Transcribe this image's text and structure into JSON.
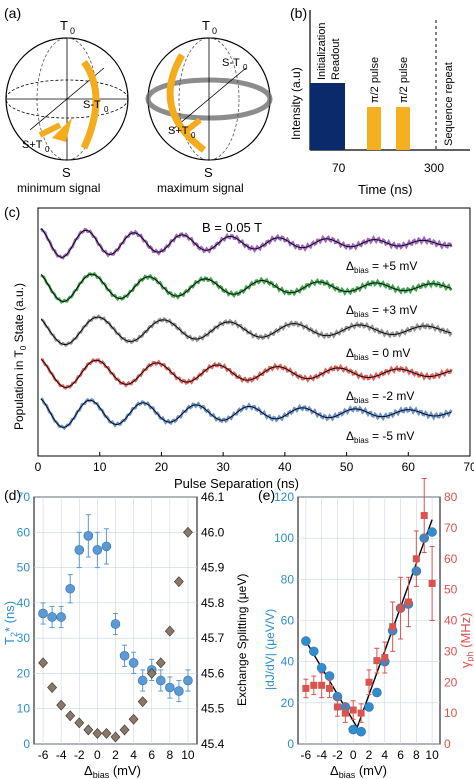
{
  "panel_a": {
    "label": "(a)",
    "sphere_top": "T",
    "sphere_top_sub": "0",
    "sphere_bottom": "S",
    "st0_main": "S-T",
    "st0_sub": "0",
    "spt0_main": "S+T",
    "spt0_sub": "0",
    "caption_left": "minimum signal",
    "caption_right": "maximum signal",
    "arrow_color": "#f4ac1c"
  },
  "chart_data": [
    {
      "id": "b",
      "type": "bar",
      "panel_label": "(b)",
      "ylabel": "Intensity (a.u)",
      "xlabel": "Time (ns)",
      "xticks": [
        "70",
        "300"
      ],
      "bars": [
        {
          "label": "Initialization Readout",
          "color": "#0b2a6b"
        },
        {
          "label": "π/2 pulse",
          "color": "#f5b021"
        },
        {
          "label": "π/2 pulse",
          "color": "#f5b021"
        }
      ],
      "repeat_label": "Sequence repeat"
    },
    {
      "id": "c",
      "type": "line",
      "panel_label": "(c)",
      "title": "B = 0.05 T",
      "xlabel": "Pulse Separation (ns)",
      "ylabel": "Population in T",
      "ylabel_sub": "0",
      "ylabel_tail": " State (a.u.)",
      "xlim": [
        0,
        70
      ],
      "xticks": [
        0,
        10,
        20,
        30,
        40,
        50,
        60,
        70
      ],
      "series": [
        {
          "name": "Δbias = +5 mV",
          "delta": "+5 mV",
          "color": "#9157b5",
          "period": 7.8,
          "decay": 35,
          "phase": 0.0
        },
        {
          "name": "Δbias = +3 mV",
          "delta": "+3 mV",
          "color": "#2f9a3e",
          "period": 9.2,
          "decay": 40,
          "phase": 0.3
        },
        {
          "name": "Δbias = 0 mV",
          "delta": "0 mV",
          "color": "#8a8a8a",
          "period": 10.6,
          "decay": 45,
          "phase": 0.5
        },
        {
          "name": "Δbias = -2 mV",
          "delta": "-2 mV",
          "color": "#d9524a",
          "period": 9.8,
          "decay": 42,
          "phase": 0.2
        },
        {
          "name": "Δbias = -5 mV",
          "delta": "-5 mV",
          "color": "#5a86c6",
          "period": 8.6,
          "decay": 38,
          "phase": 0.1
        }
      ],
      "delta_prefix": "Δ",
      "delta_sub": "bias",
      "delta_eq": " = "
    },
    {
      "id": "d",
      "type": "scatter",
      "panel_label": "(d)",
      "xlabel": "Δ",
      "xlabel_sub": "bias",
      "xlabel_tail": " (mV)",
      "xlim": [
        -7,
        11
      ],
      "xticks": [
        -6,
        -4,
        -2,
        0,
        2,
        4,
        6,
        8,
        10
      ],
      "left_axis": {
        "label": "T",
        "label_sub": "2",
        "label_tail": "* (ns)",
        "ylim": [
          0,
          70
        ],
        "yticks": [
          0,
          10,
          20,
          30,
          40,
          50,
          60,
          70
        ],
        "color": "#2e8fd0"
      },
      "right_axis": {
        "label": "Exchange Splitting (μeV)",
        "ylim": [
          45.4,
          46.1
        ],
        "yticks": [
          "45.4",
          "45.5",
          "45.6",
          "45.7",
          "45.8",
          "45.9",
          "46.0",
          "46.1"
        ],
        "color": "#000000"
      },
      "series": [
        {
          "name": "T2*",
          "axis": "left",
          "marker": "circle",
          "color": "#5b9bd5",
          "x": [
            -6,
            -5,
            -4,
            -3,
            -2,
            -1,
            0,
            1,
            2,
            3,
            4,
            5,
            6,
            7,
            8,
            9,
            10
          ],
          "y": [
            37,
            36,
            36,
            44,
            55,
            59,
            55,
            56,
            34,
            25,
            23,
            18,
            21,
            18,
            16,
            15,
            18
          ],
          "err": [
            3,
            3,
            3,
            4,
            5,
            6,
            5,
            5,
            3,
            3,
            3,
            3,
            3,
            3,
            3,
            3,
            3
          ]
        },
        {
          "name": "Exchange",
          "axis": "right",
          "marker": "diamond",
          "color": "#8b7765",
          "x": [
            -6,
            -5,
            -4,
            -3,
            -2,
            -1,
            0,
            1,
            2,
            3,
            4,
            5,
            6,
            7,
            8,
            9,
            10
          ],
          "y": [
            45.63,
            45.56,
            45.51,
            45.48,
            45.46,
            45.44,
            45.43,
            45.43,
            45.42,
            45.44,
            45.47,
            45.52,
            45.6,
            45.63,
            45.72,
            45.86,
            46.0
          ]
        }
      ]
    },
    {
      "id": "e",
      "type": "scatter",
      "panel_label": "(e)",
      "xlabel": "Δ",
      "xlabel_sub": "bias",
      "xlabel_tail": " (mV)",
      "xlim": [
        -7,
        11
      ],
      "xticks": [
        -6,
        -4,
        -2,
        0,
        2,
        4,
        6,
        8,
        10
      ],
      "left_axis": {
        "label": "|dJ/dV| (μeV/V)",
        "ylim": [
          0,
          120
        ],
        "yticks": [
          0,
          20,
          40,
          60,
          80,
          100,
          120
        ],
        "color": "#2e8fd0"
      },
      "right_axis": {
        "label": "γ",
        "label_sub": "ph",
        "label_tail": " (MHz)",
        "ylim": [
          0,
          80
        ],
        "yticks": [
          0,
          10,
          20,
          30,
          40,
          50,
          60,
          70,
          80
        ],
        "color": "#d9534f"
      },
      "series": [
        {
          "name": "|dJ/dV|",
          "axis": "left",
          "marker": "circle",
          "color": "#2e8fd0",
          "x": [
            -6,
            -5,
            -4,
            -3,
            -2,
            -1,
            0,
            1,
            2,
            3,
            4,
            5,
            6,
            7,
            8,
            9,
            10
          ],
          "y": [
            50,
            45,
            37,
            33,
            23,
            18,
            7,
            6,
            18,
            25,
            40,
            55,
            66,
            68,
            84,
            100,
            103
          ]
        },
        {
          "name": "γph",
          "axis": "right",
          "marker": "square",
          "color": "#d9534f",
          "x": [
            -6,
            -5,
            -4,
            -3,
            -2,
            -1,
            0,
            1,
            2,
            3,
            4,
            5,
            6,
            7,
            8,
            9,
            10
          ],
          "y": [
            18,
            19,
            19,
            18,
            12,
            10,
            11,
            10,
            20,
            27,
            28,
            38,
            44,
            46,
            60,
            74,
            52
          ],
          "err": [
            3,
            3,
            4,
            3,
            3,
            3,
            3,
            3,
            4,
            4,
            5,
            8,
            10,
            8,
            9,
            12,
            12
          ]
        }
      ],
      "fit_lines": [
        {
          "x": [
            -6,
            0.5
          ],
          "y": [
            50,
            8
          ]
        },
        {
          "x": [
            0.5,
            10
          ],
          "y": [
            8,
            109
          ]
        }
      ]
    }
  ]
}
